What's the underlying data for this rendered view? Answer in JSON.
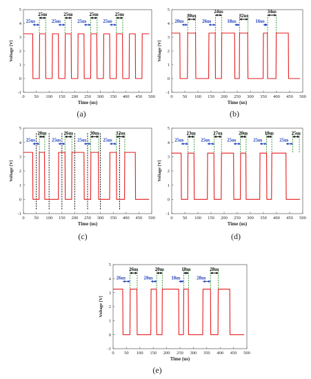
{
  "chart_data": [
    {
      "type": "line",
      "panel": "(a)",
      "xlabel": "Time (us)",
      "ylabel": "Voltage [V]",
      "xlim": [
        0,
        500
      ],
      "ylim": [
        -1,
        5
      ],
      "x_ticks": [
        "0",
        "50",
        "100",
        "150",
        "200",
        "250",
        "300",
        "350",
        "400",
        "450",
        "500"
      ],
      "y_ticks": [
        "-1",
        "0",
        "1",
        "2",
        "3",
        "4",
        "5"
      ],
      "series": [
        {
          "color": "#e41a1c",
          "high_level": 3.25,
          "low_level": 0.0,
          "x": [
            0,
            36,
            37,
            62,
            63,
            86,
            87,
            112,
            113,
            136,
            137,
            162,
            163,
            186,
            187,
            212,
            213,
            236,
            237,
            262,
            263,
            286,
            287,
            312,
            313,
            336,
            337,
            362,
            363,
            386,
            387,
            412,
            413,
            436,
            437,
            462,
            463,
            490
          ],
          "y": [
            3.25,
            3.25,
            0.0,
            0.0,
            3.25,
            3.25,
            0.0,
            0.0,
            3.25,
            3.25,
            0.0,
            0.0,
            3.25,
            3.25,
            0.0,
            0.0,
            3.25,
            3.25,
            0.0,
            0.0,
            3.25,
            3.25,
            0.0,
            0.0,
            3.25,
            3.25,
            0.0,
            0.0,
            3.25,
            3.25,
            0.0,
            0.0,
            3.25,
            3.25,
            0.0,
            0.0,
            3.25,
            3.25
          ]
        }
      ],
      "annotations": [
        {
          "text": "25us",
          "color": "#1f3fbf",
          "x0": 37,
          "x1": 62,
          "y": 3.9
        },
        {
          "text": "25us",
          "color": "#111111",
          "x0": 62,
          "x1": 87,
          "y": 4.4
        },
        {
          "text": "25us",
          "color": "#1f3fbf",
          "x0": 137,
          "x1": 162,
          "y": 3.9
        },
        {
          "text": "25us",
          "color": "#111111",
          "x0": 162,
          "x1": 187,
          "y": 4.4
        },
        {
          "text": "25us",
          "color": "#1f3fbf",
          "x0": 237,
          "x1": 262,
          "y": 3.9
        },
        {
          "text": "25us",
          "color": "#111111",
          "x0": 262,
          "x1": 287,
          "y": 4.4
        },
        {
          "text": "25us",
          "color": "#1f3fbf",
          "x0": 337,
          "x1": 362,
          "y": 3.9
        },
        {
          "text": "25us",
          "color": "#111111",
          "x0": 362,
          "x1": 387,
          "y": 4.4
        }
      ],
      "markers": [
        {
          "x": 62,
          "color": "#3a9a3a",
          "style": "dashed"
        },
        {
          "x": 87,
          "color": "#3a9a3a",
          "style": "dashed"
        },
        {
          "x": 162,
          "color": "#3a9a3a",
          "style": "dashed"
        },
        {
          "x": 187,
          "color": "#3a9a3a",
          "style": "dashed"
        },
        {
          "x": 262,
          "color": "#3a9a3a",
          "style": "dashed"
        },
        {
          "x": 287,
          "color": "#3a9a3a",
          "style": "dashed"
        },
        {
          "x": 362,
          "color": "#3a9a3a",
          "style": "dashed"
        },
        {
          "x": 387,
          "color": "#3a9a3a",
          "style": "dashed"
        }
      ]
    },
    {
      "type": "line",
      "panel": "(b)",
      "xlabel": "Time (us)",
      "ylabel": "Voltage [V]",
      "xlim": [
        0,
        500
      ],
      "ylim": [
        -1,
        5
      ],
      "x_ticks": [
        "0",
        "50",
        "100",
        "150",
        "200",
        "250",
        "300",
        "350",
        "400",
        "450",
        "500"
      ],
      "y_ticks": [
        "-1",
        "0",
        "1",
        "2",
        "3",
        "4",
        "5"
      ],
      "series": [
        {
          "color": "#e41a1c",
          "high_level": 3.3,
          "low_level": 0.0,
          "x": [
            0,
            31,
            32,
            60,
            61,
            91,
            92,
            141,
            142,
            166,
            167,
            190,
            191,
            240,
            241,
            258,
            259,
            290,
            291,
            349,
            350,
            365,
            366,
            398,
            399,
            445,
            446,
            490
          ],
          "y": [
            3.3,
            3.3,
            0.0,
            0.0,
            3.3,
            3.3,
            0.0,
            0.0,
            3.3,
            3.3,
            0.0,
            0.0,
            3.3,
            3.3,
            0.0,
            0.0,
            3.3,
            3.3,
            0.0,
            0.0,
            3.3,
            3.3,
            0.0,
            0.0,
            3.3,
            3.3,
            0.0,
            0.0
          ]
        }
      ],
      "annotations": [
        {
          "text": "20us",
          "color": "#1f3fbf",
          "x0": 40,
          "x1": 60,
          "y": 3.9
        },
        {
          "text": "30us",
          "color": "#111111",
          "x0": 61,
          "x1": 91,
          "y": 4.3
        },
        {
          "text": "26us",
          "color": "#1f3fbf",
          "x0": 142,
          "x1": 167,
          "y": 3.9
        },
        {
          "text": "24us",
          "color": "#111111",
          "x0": 167,
          "x1": 191,
          "y": 4.6
        },
        {
          "text": "18us",
          "color": "#1f3fbf",
          "x0": 241,
          "x1": 259,
          "y": 3.9
        },
        {
          "text": "32us",
          "color": "#111111",
          "x0": 259,
          "x1": 291,
          "y": 4.3
        },
        {
          "text": "16us",
          "color": "#1f3fbf",
          "x0": 350,
          "x1": 366,
          "y": 3.9
        },
        {
          "text": "34us",
          "color": "#111111",
          "x0": 366,
          "x1": 399,
          "y": 4.6
        }
      ],
      "markers": [
        {
          "x": 61,
          "color": "#3a9a3a",
          "style": "dashed"
        },
        {
          "x": 91,
          "color": "#3a9a3a",
          "style": "dashed"
        },
        {
          "x": 167,
          "color": "#3a9a3a",
          "style": "dashed"
        },
        {
          "x": 191,
          "color": "#3a9a3a",
          "style": "dashed"
        },
        {
          "x": 259,
          "color": "#3a9a3a",
          "style": "dashed"
        },
        {
          "x": 291,
          "color": "#3a9a3a",
          "style": "dashed"
        },
        {
          "x": 366,
          "color": "#3a9a3a",
          "style": "dashed"
        },
        {
          "x": 399,
          "color": "#3a9a3a",
          "style": "dashed"
        }
      ]
    },
    {
      "type": "line",
      "panel": "(c)",
      "xlabel": "Time (us)",
      "ylabel": "Voltage [V]",
      "xlim": [
        0,
        500
      ],
      "ylim": [
        -1,
        5
      ],
      "x_ticks": [
        "0",
        "50",
        "100",
        "150",
        "200",
        "250",
        "300",
        "350",
        "400",
        "450",
        "500"
      ],
      "y_ticks": [
        "-1",
        "0",
        "1",
        "2",
        "3",
        "4",
        "5"
      ],
      "series": [
        {
          "color": "#e41a1c",
          "high_level": 3.3,
          "low_level": 0.0,
          "x": [
            0,
            36,
            37,
            61,
            62,
            82,
            83,
            136,
            137,
            162,
            163,
            188,
            189,
            236,
            237,
            262,
            263,
            292,
            293,
            336,
            337,
            362,
            363,
            394,
            395,
            436,
            437,
            490
          ],
          "y": [
            3.3,
            3.3,
            0.0,
            0.0,
            3.3,
            3.3,
            0.0,
            0.0,
            3.3,
            3.3,
            0.0,
            0.0,
            3.3,
            3.3,
            0.0,
            0.0,
            3.3,
            3.3,
            0.0,
            0.0,
            3.3,
            3.3,
            0.0,
            0.0,
            3.3,
            3.3,
            0.0,
            0.0
          ]
        }
      ],
      "annotations": [
        {
          "text": "25us",
          "color": "#1f3fbf",
          "x0": 37,
          "x1": 62,
          "y": 3.9
        },
        {
          "text": "20us",
          "color": "#111111",
          "x0": 62,
          "x1": 83,
          "y": 4.4
        },
        {
          "text": "25us",
          "color": "#1f3fbf",
          "x0": 137,
          "x1": 162,
          "y": 3.9
        },
        {
          "text": "26us",
          "color": "#111111",
          "x0": 162,
          "x1": 189,
          "y": 4.4
        },
        {
          "text": "25us",
          "color": "#1f3fbf",
          "x0": 237,
          "x1": 262,
          "y": 3.9
        },
        {
          "text": "30us",
          "color": "#111111",
          "x0": 262,
          "x1": 293,
          "y": 4.4
        },
        {
          "text": "25us",
          "color": "#1f3fbf",
          "x0": 337,
          "x1": 362,
          "y": 3.9
        },
        {
          "text": "32us",
          "color": "#111111",
          "x0": 362,
          "x1": 395,
          "y": 4.4
        }
      ],
      "markers": [
        {
          "x": 62,
          "color": "#3a9a3a",
          "style": "dashed"
        },
        {
          "x": 83,
          "color": "#3a9a3a",
          "style": "dashed"
        },
        {
          "x": 162,
          "color": "#3a9a3a",
          "style": "dashed"
        },
        {
          "x": 189,
          "color": "#3a9a3a",
          "style": "dashed"
        },
        {
          "x": 262,
          "color": "#3a9a3a",
          "style": "dashed"
        },
        {
          "x": 293,
          "color": "#3a9a3a",
          "style": "dashed"
        },
        {
          "x": 362,
          "color": "#3a9a3a",
          "style": "dashed"
        },
        {
          "x": 395,
          "color": "#3a9a3a",
          "style": "dashed"
        },
        {
          "x": 50,
          "color": "#111111",
          "style": "dashed"
        },
        {
          "x": 100,
          "color": "#111111",
          "style": "dashed"
        },
        {
          "x": 150,
          "color": "#111111",
          "style": "dashed"
        },
        {
          "x": 200,
          "color": "#111111",
          "style": "dashed"
        },
        {
          "x": 250,
          "color": "#111111",
          "style": "dashed"
        },
        {
          "x": 300,
          "color": "#111111",
          "style": "dashed"
        },
        {
          "x": 375,
          "color": "#111111",
          "style": "dashed"
        }
      ]
    },
    {
      "type": "line",
      "panel": "(d)",
      "xlabel": "Time (us)",
      "ylabel": "Voltage [V]",
      "xlim": [
        0,
        500
      ],
      "ylim": [
        -1,
        5
      ],
      "x_ticks": [
        "0",
        "50",
        "100",
        "150",
        "200",
        "250",
        "300",
        "350",
        "400",
        "450",
        "500"
      ],
      "y_ticks": [
        "-1",
        "0",
        "1",
        "2",
        "3",
        "4",
        "5"
      ],
      "series": [
        {
          "color": "#e41a1c",
          "high_level": 3.25,
          "low_level": 0.0,
          "x": [
            0,
            36,
            37,
            61,
            62,
            85,
            86,
            136,
            137,
            161,
            162,
            189,
            190,
            236,
            237,
            262,
            263,
            283,
            284,
            336,
            337,
            362,
            363,
            381,
            382,
            436,
            437,
            490
          ],
          "y": [
            3.25,
            3.25,
            0.0,
            0.0,
            3.25,
            3.25,
            0.0,
            0.0,
            3.25,
            3.25,
            0.0,
            0.0,
            3.25,
            3.25,
            0.0,
            0.0,
            3.25,
            3.25,
            0.0,
            0.0,
            3.25,
            3.25,
            0.0,
            0.0,
            3.25,
            3.25,
            0.0,
            0.0
          ]
        }
      ],
      "annotations": [
        {
          "text": "25us",
          "color": "#1f3fbf",
          "x0": 37,
          "x1": 62,
          "y": 3.9
        },
        {
          "text": "23us",
          "color": "#111111",
          "x0": 62,
          "x1": 86,
          "y": 4.4
        },
        {
          "text": "25us",
          "color": "#1f3fbf",
          "x0": 137,
          "x1": 162,
          "y": 3.9
        },
        {
          "text": "27us",
          "color": "#111111",
          "x0": 162,
          "x1": 190,
          "y": 4.4
        },
        {
          "text": "25us",
          "color": "#1f3fbf",
          "x0": 237,
          "x1": 262,
          "y": 3.9
        },
        {
          "text": "20us",
          "color": "#111111",
          "x0": 262,
          "x1": 284,
          "y": 4.4
        },
        {
          "text": "25us",
          "color": "#1f3fbf",
          "x0": 337,
          "x1": 362,
          "y": 3.9
        },
        {
          "text": "18us",
          "color": "#111111",
          "x0": 362,
          "x1": 382,
          "y": 4.4
        },
        {
          "text": "25us",
          "color": "#1f3fbf",
          "x0": 437,
          "x1": 462,
          "y": 3.9
        },
        {
          "text": "25us",
          "color": "#111111",
          "x0": 462,
          "x1": 487,
          "y": 4.4
        }
      ],
      "markers": [
        {
          "x": 62,
          "color": "#3a9a3a",
          "style": "dashed"
        },
        {
          "x": 86,
          "color": "#3a9a3a",
          "style": "dashed"
        },
        {
          "x": 162,
          "color": "#3a9a3a",
          "style": "dashed"
        },
        {
          "x": 190,
          "color": "#3a9a3a",
          "style": "dashed"
        },
        {
          "x": 262,
          "color": "#3a9a3a",
          "style": "dashed"
        },
        {
          "x": 284,
          "color": "#3a9a3a",
          "style": "dashed"
        },
        {
          "x": 362,
          "color": "#3a9a3a",
          "style": "dashed"
        },
        {
          "x": 382,
          "color": "#3a9a3a",
          "style": "dashed"
        },
        {
          "x": 462,
          "color": "#3a9a3a",
          "style": "dashed"
        },
        {
          "x": 487,
          "color": "#3a9a3a",
          "style": "dashed"
        }
      ]
    },
    {
      "type": "line",
      "panel": "(e)",
      "xlabel": "Time (us)",
      "ylabel": "Voltage [V]",
      "xlim": [
        0,
        500
      ],
      "ylim": [
        -1,
        5
      ],
      "x_ticks": [
        "0",
        "50",
        "100",
        "150",
        "200",
        "250",
        "300",
        "350",
        "400",
        "450",
        "500"
      ],
      "y_ticks": [
        "-1",
        "0",
        "1",
        "2",
        "3",
        "4",
        "5"
      ],
      "series": [
        {
          "color": "#e41a1c",
          "high_level": 3.25,
          "low_level": 0.0,
          "x": [
            0,
            36,
            37,
            63,
            64,
            89,
            90,
            141,
            142,
            162,
            163,
            183,
            184,
            245,
            246,
            263,
            264,
            281,
            282,
            335,
            336,
            364,
            365,
            392,
            393,
            436,
            437,
            490
          ],
          "y": [
            3.25,
            3.25,
            0.0,
            0.0,
            3.25,
            3.25,
            0.0,
            0.0,
            3.25,
            3.25,
            0.0,
            0.0,
            3.25,
            3.25,
            0.0,
            0.0,
            3.25,
            3.25,
            0.0,
            0.0,
            3.25,
            3.25,
            0.0,
            0.0,
            3.25,
            3.25,
            0.0,
            0.0
          ]
        }
      ],
      "annotations": [
        {
          "text": "26us",
          "color": "#1f3fbf",
          "x0": 37,
          "x1": 63,
          "y": 3.8
        },
        {
          "text": "26us",
          "color": "#111111",
          "x0": 63,
          "x1": 90,
          "y": 4.4
        },
        {
          "text": "20us",
          "color": "#1f3fbf",
          "x0": 142,
          "x1": 163,
          "y": 3.8
        },
        {
          "text": "20us",
          "color": "#111111",
          "x0": 163,
          "x1": 184,
          "y": 4.4
        },
        {
          "text": "18us",
          "color": "#1f3fbf",
          "x0": 246,
          "x1": 264,
          "y": 3.8
        },
        {
          "text": "18us",
          "color": "#111111",
          "x0": 264,
          "x1": 282,
          "y": 4.4
        },
        {
          "text": "28us",
          "color": "#1f3fbf",
          "x0": 336,
          "x1": 364,
          "y": 3.8
        },
        {
          "text": "28us",
          "color": "#111111",
          "x0": 364,
          "x1": 393,
          "y": 4.4
        }
      ],
      "markers": [
        {
          "x": 63,
          "color": "#3a9a3a",
          "style": "dashed"
        },
        {
          "x": 90,
          "color": "#3a9a3a",
          "style": "dashed"
        },
        {
          "x": 163,
          "color": "#3a9a3a",
          "style": "dashed"
        },
        {
          "x": 184,
          "color": "#3a9a3a",
          "style": "dashed"
        },
        {
          "x": 264,
          "color": "#3a9a3a",
          "style": "dashed"
        },
        {
          "x": 282,
          "color": "#3a9a3a",
          "style": "dashed"
        },
        {
          "x": 364,
          "color": "#3a9a3a",
          "style": "dashed"
        },
        {
          "x": 393,
          "color": "#3a9a3a",
          "style": "dashed"
        }
      ]
    }
  ],
  "captions": [
    "(a)",
    "(b)",
    "(c)",
    "(d)",
    "(e)"
  ]
}
